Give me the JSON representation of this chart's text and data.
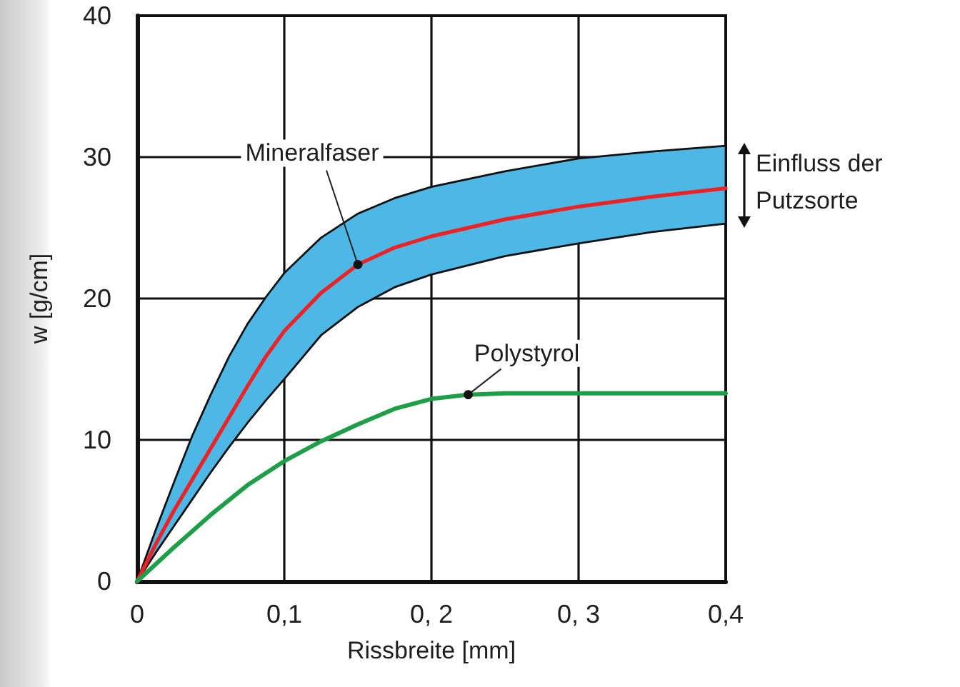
{
  "chart_data": {
    "type": "line",
    "xlabel": "Rissbreite [mm]",
    "ylabel": "w [g/cm]",
    "xlim": [
      0,
      0.4
    ],
    "xticks": [
      0,
      {
        "value": 0.1,
        "label": "0,1"
      },
      {
        "value": 0.2,
        "label": "0, 2"
      },
      {
        "value": 0.3,
        "label": "0, 3"
      },
      {
        "value": 0.4,
        "label": "0,4"
      }
    ],
    "ylim": [
      0,
      40
    ],
    "yticks": [
      0,
      10,
      20,
      30,
      40
    ],
    "grid": true,
    "marker": "none",
    "line_style": "solid",
    "annotations": [
      "Einfluss der Putzsorte"
    ],
    "series": [
      {
        "name": "Mineralfaser",
        "color": "#ee2224",
        "x": [
          0,
          0.0125,
          0.025,
          0.0375,
          0.05,
          0.0625,
          0.075,
          0.0875,
          0.1,
          0.125,
          0.15,
          0.175,
          0.2,
          0.25,
          0.3,
          0.35,
          0.4
        ],
        "values": [
          0,
          2.6,
          5.0,
          7.2,
          9.4,
          11.6,
          13.8,
          15.9,
          17.7,
          20.4,
          22.4,
          23.6,
          24.4,
          25.6,
          26.5,
          27.2,
          27.8
        ],
        "lower": [
          0,
          2.0,
          3.9,
          5.8,
          7.7,
          9.5,
          11.2,
          12.8,
          14.3,
          17.4,
          19.4,
          20.8,
          21.7,
          23.0,
          23.9,
          24.7,
          25.3
        ],
        "upper": [
          0,
          3.6,
          7.0,
          10.3,
          13.2,
          15.9,
          18.2,
          20.1,
          21.8,
          24.3,
          26.0,
          27.1,
          27.9,
          29.0,
          29.9,
          30.4,
          30.8
        ]
      },
      {
        "name": "Polystyrol",
        "color": "#1e9e48",
        "x": [
          0,
          0.025,
          0.05,
          0.075,
          0.1,
          0.125,
          0.15,
          0.175,
          0.2,
          0.225,
          0.25,
          0.3,
          0.35,
          0.4
        ],
        "values": [
          0,
          2.4,
          4.7,
          6.8,
          8.5,
          9.9,
          11.1,
          12.2,
          12.9,
          13.2,
          13.3,
          13.3,
          13.3,
          13.3
        ]
      }
    ]
  }
}
